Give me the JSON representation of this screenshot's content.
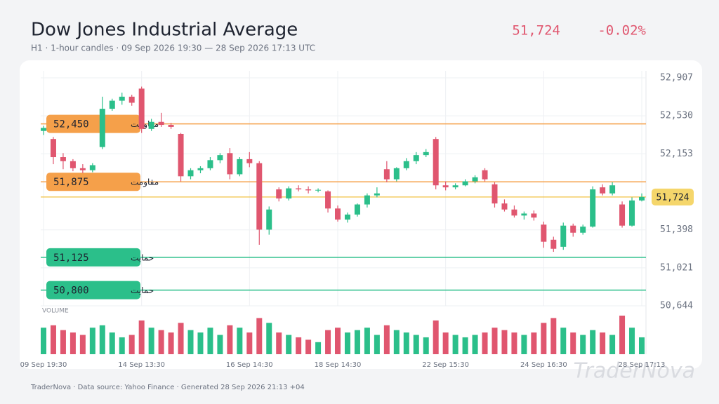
{
  "chart_data": {
    "type": "candlestick",
    "title": "Dow Jones Industrial Average",
    "subtitle": "H1 · 1-hour candles · 09 Sep 2026 19:30 — 28 Sep 2026 17:13 UTC",
    "current_price": {
      "value": 51724,
      "label": "51,724"
    },
    "change": {
      "value": -0.02,
      "label": "-0.02%"
    },
    "volume_label": "VOLUME",
    "footer": "TraderNova · Data source: Yahoo Finance · Generated 28 Sep 2026 21:13 +04",
    "watermark": "TraderNova",
    "up_color": "#2bbf8a",
    "down_color": "#e0566f",
    "ylim": [
      50644,
      52907
    ],
    "yticks": [
      {
        "value": 50644,
        "label": "50,644"
      },
      {
        "value": 51021,
        "label": "51,021"
      },
      {
        "value": 51398,
        "label": "51,398"
      },
      {
        "value": 52153,
        "label": "52,153"
      },
      {
        "value": 52530,
        "label": "52,530"
      },
      {
        "value": 52907,
        "label": "52,907"
      }
    ],
    "grid": true,
    "levels": [
      {
        "name": "مقاومت",
        "value": 52450,
        "label": "52,450",
        "color": "#f5a04a"
      },
      {
        "name": "مقاومت",
        "value": 51875,
        "label": "51,875",
        "color": "#f5a04a"
      },
      {
        "name": "حمایت",
        "value": 51125,
        "label": "51,125",
        "color": "#2bbf8a"
      },
      {
        "name": "حمایت",
        "value": 50800,
        "label": "50,800",
        "color": "#2bbf8a"
      }
    ],
    "categories": [
      "09 Sep 19:30",
      null,
      null,
      null,
      null,
      null,
      null,
      null,
      null,
      null,
      "14 Sep 13:30",
      null,
      null,
      null,
      null,
      null,
      null,
      null,
      null,
      null,
      null,
      "16 Sep 14:30",
      null,
      null,
      null,
      null,
      null,
      null,
      null,
      null,
      "18 Sep 14:30",
      null,
      null,
      null,
      null,
      null,
      null,
      null,
      null,
      null,
      null,
      "22 Sep 15:30",
      null,
      null,
      null,
      null,
      null,
      null,
      null,
      null,
      null,
      "24 Sep 16:30",
      null,
      null,
      null,
      null,
      null,
      null,
      null,
      null,
      null,
      "28 Sep 17:13"
    ],
    "open": [
      52380,
      52300,
      52120,
      52080,
      52010,
      51990,
      52220,
      52600,
      52680,
      52720,
      52800,
      52400,
      52470,
      52440,
      52350,
      51930,
      51990,
      52010,
      52090,
      52160,
      51950,
      52100,
      52060,
      51400,
      51800,
      51710,
      51810,
      51800,
      51790,
      51780,
      51610,
      51500,
      51550,
      51650,
      51740,
      52000,
      51900,
      52010,
      52080,
      52140,
      52300,
      51840,
      51820,
      51840,
      51880,
      51990,
      51850,
      51660,
      51600,
      51540,
      51560,
      51450,
      51300,
      51230,
      51440,
      51370,
      51430,
      51820,
      51760,
      51650,
      51440,
      51690
    ],
    "high": [
      52430,
      52320,
      52160,
      52100,
      52050,
      52060,
      52720,
      52700,
      52760,
      52740,
      52820,
      52500,
      52560,
      52460,
      52360,
      52010,
      52030,
      52120,
      52160,
      52210,
      52120,
      52170,
      52080,
      51630,
      51820,
      51830,
      51840,
      51830,
      51810,
      51790,
      51640,
      51570,
      51660,
      51760,
      51820,
      52080,
      52020,
      52110,
      52170,
      52200,
      52320,
      51880,
      51860,
      51900,
      51940,
      52010,
      51870,
      51700,
      51640,
      51580,
      51590,
      51480,
      51330,
      51470,
      51460,
      51450,
      51830,
      51850,
      51870,
      51680,
      51720,
      51760
    ],
    "low": [
      52340,
      52050,
      52000,
      51980,
      51960,
      51970,
      52200,
      52580,
      52640,
      52630,
      52360,
      52380,
      52420,
      52400,
      51880,
      51900,
      51960,
      51990,
      52060,
      51900,
      51930,
      52020,
      51250,
      51350,
      51680,
      51690,
      51780,
      51760,
      51770,
      51570,
      51480,
      51470,
      51530,
      51620,
      51720,
      51870,
      51880,
      51990,
      52050,
      52120,
      51800,
      51790,
      51800,
      51830,
      51860,
      51880,
      51620,
      51580,
      51520,
      51500,
      51490,
      51220,
      51180,
      51200,
      51330,
      51350,
      51420,
      51740,
      51740,
      51420,
      51430,
      51680
    ],
    "close": [
      52410,
      52120,
      52080,
      52010,
      51990,
      52040,
      52600,
      52680,
      52720,
      52660,
      52400,
      52470,
      52440,
      52420,
      51930,
      51990,
      52010,
      52090,
      52140,
      51950,
      52100,
      52060,
      51400,
      51600,
      51710,
      51810,
      51800,
      51790,
      51795,
      51610,
      51500,
      51550,
      51650,
      51740,
      51760,
      51900,
      52010,
      52080,
      52140,
      52170,
      51840,
      51820,
      51840,
      51880,
      51920,
      51900,
      51660,
      51600,
      51540,
      51560,
      51520,
      51280,
      51210,
      51440,
      51370,
      51430,
      51800,
      51760,
      51840,
      51440,
      51690,
      51724
    ],
    "volume": [
      55,
      60,
      50,
      45,
      40,
      55,
      60,
      45,
      35,
      40,
      70,
      55,
      50,
      45,
      65,
      50,
      45,
      55,
      40,
      60,
      55,
      45,
      75,
      65,
      45,
      40,
      35,
      30,
      25,
      50,
      55,
      45,
      50,
      55,
      40,
      60,
      50,
      45,
      40,
      35,
      70,
      45,
      40,
      35,
      40,
      45,
      55,
      50,
      45,
      40,
      45,
      65,
      75,
      55,
      45,
      40,
      50,
      45,
      40,
      80,
      55,
      35
    ]
  }
}
